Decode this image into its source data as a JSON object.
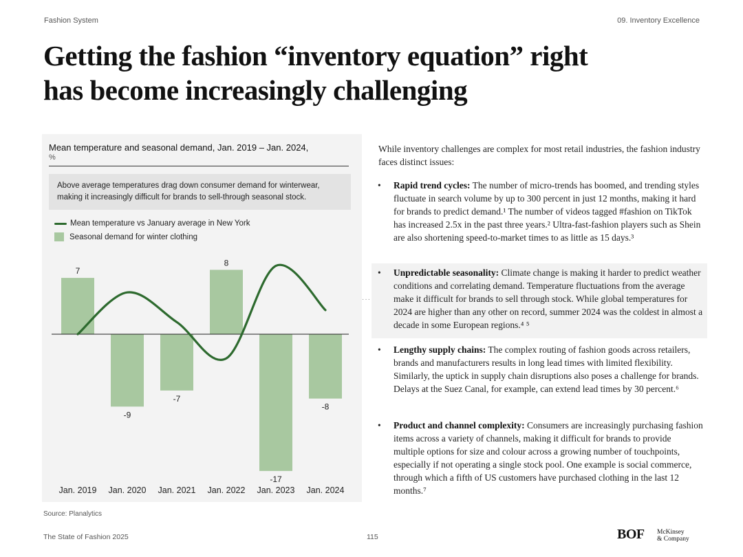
{
  "header": {
    "left": "Fashion System",
    "right": "09. Inventory Excellence"
  },
  "title": {
    "line1": "Getting the fashion “inventory equation” right",
    "line2": "has become increasingly challenging"
  },
  "chart_data": {
    "type": "bar",
    "title": "Mean temperature and seasonal demand, Jan. 2019 – Jan. 2024,",
    "unit": "%",
    "callout": "Above average temperatures drag down consumer demand for winterwear, making it increasingly difficult for brands to sell-through seasonal stock.",
    "categories": [
      "Jan. 2019",
      "Jan. 2020",
      "Jan. 2021",
      "Jan. 2022",
      "Jan. 2023",
      "Jan. 2024"
    ],
    "series": [
      {
        "name": "Seasonal demand for winter clothing",
        "type": "bar",
        "values": [
          7,
          -9,
          -7,
          8,
          -17,
          -8
        ],
        "color": "#a8c8a0"
      },
      {
        "name": "Mean temperature vs January average in New York",
        "type": "line",
        "curve": "smooth",
        "unlabeled": true,
        "values": [
          0,
          5.2,
          1.5,
          -3,
          8.5,
          3
        ],
        "color": "#2d6a2e"
      }
    ],
    "ylim": [
      -19,
      9.5
    ],
    "zero_line": true
  },
  "intro": "While inventory challenges are complex for most retail industries, the fashion industry faces distinct issues:",
  "bullets": [
    {
      "title": "Rapid trend cycles:",
      "body": " The number of micro-trends has boomed, and trending styles fluctuate in search volume by up to 300 percent in just 12 months, making it hard for brands to predict demand.¹ The number of videos tagged #fashion on TikTok has increased 2.5x in the past three years.² Ultra-fast-fashion players such as Shein are also shortening speed-to-market times to as little as 15 days.³"
    },
    {
      "title": "Unpredictable seasonality:",
      "body": " Climate change is making it harder to predict weather conditions and correlating demand. Temperature fluctuations from the average make it difficult for brands to sell through stock. While global temperatures for 2024 are higher than any other on record, summer 2024 was the coldest in almost a decade in some European regions.⁴ ⁵"
    },
    {
      "title": "Lengthy supply chains:",
      "body": " The complex routing of fashion goods across retailers, brands and manufacturers results in long lead times with limited flexibility. Similarly, the uptick in supply chain disruptions also poses a challenge for brands. Delays at the Suez Canal, for example, can extend lead times by 30 percent.⁶"
    },
    {
      "title": "Product and channel complexity:",
      "body": " Consumers are increasingly purchasing fashion items across a variety of channels, making it difficult for brands to provide multiple options for size and colour across a growing number of touchpoints, especially if not operating a single stock pool. One example is social commerce, through which a fifth of US customers have purchased clothing in the last 12 months.⁷"
    }
  ],
  "bullet_glyph": "•",
  "source": "Source: Planalytics",
  "footer": {
    "left": "The State of Fashion 2025",
    "page": "115"
  },
  "logos": {
    "bof": "BOF",
    "mck_line1": "McKinsey",
    "mck_line2": "& Company"
  }
}
